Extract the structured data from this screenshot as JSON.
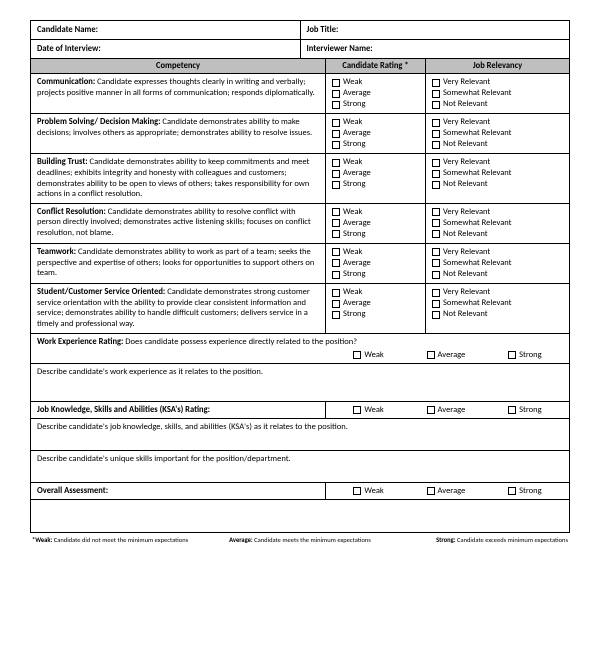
{
  "header": {
    "candidate_name": "Candidate Name:",
    "job_title": "Job Title:",
    "date_of_interview": "Date of Interview:",
    "interviewer_name": "Interviewer Name:"
  },
  "column_heads": {
    "competency": "Competency",
    "rating": "Candidate Rating *",
    "relevancy": "Job Relevancy"
  },
  "rating_opts": {
    "weak": "Weak",
    "average": "Average",
    "strong": "Strong"
  },
  "relevancy_opts": {
    "very": "Very Relevant",
    "somewhat": "Somewhat Relevant",
    "not": "Not Relevant"
  },
  "competencies": [
    {
      "title": "Communication:",
      "desc": " Candidate expresses thoughts clearly in writing and verbally; projects positive manner in all forms of communication; responds diplomatically."
    },
    {
      "title": "Problem Solving/ Decision Making:",
      "desc": " Candidate demonstrates ability to make decisions; involves others as appropriate; demonstrates ability to resolve issues."
    },
    {
      "title": "Building Trust:",
      "desc": " Candidate demonstrates ability to keep commitments and meet deadlines; exhibits integrity and honesty with colleagues and customers; demonstrates ability to be open to views of others; takes responsibility for own actions in a conflict resolution."
    },
    {
      "title": "Conflict Resolution:",
      "desc": " Candidate demonstrates ability to resolve conflict with person directly involved; demonstrates active listening skills; focuses on conflict resolution, not blame."
    },
    {
      "title": "Teamwork:",
      "desc": " Candidate demonstrates ability to work as part of a team; seeks the perspective and expertise of others; looks for opportunities to support others on team."
    },
    {
      "title": "Student/Customer Service Oriented:",
      "desc": " Candidate demonstrates strong customer service orientation with the ability to provide clear consistent information and service; demonstrates ability to handle difficult customers; delivers service in a timely and professional way."
    }
  ],
  "work_exp": {
    "rating_label": "Work Experience Rating:",
    "rating_q": " Does candidate possess experience directly related to the position?",
    "describe": "Describe candidate's work experience as it relates to the position."
  },
  "ksa": {
    "rating_label": "Job Knowledge, Skills  and Abilities (KSA's) Rating:",
    "describe": "Describe candidate's job knowledge, skills, and abilities (KSA's) as it relates to the position.",
    "unique": "Describe candidate's unique skills important for the position/department."
  },
  "overall": {
    "label": "Overall Assessment:"
  },
  "legend": {
    "weak": "*Weak: Candidate did not meet the minimum expectations",
    "average": "Average: Candidate meets the minimum expectations",
    "strong": "Strong: Candidate exceeds minimum expectations"
  }
}
